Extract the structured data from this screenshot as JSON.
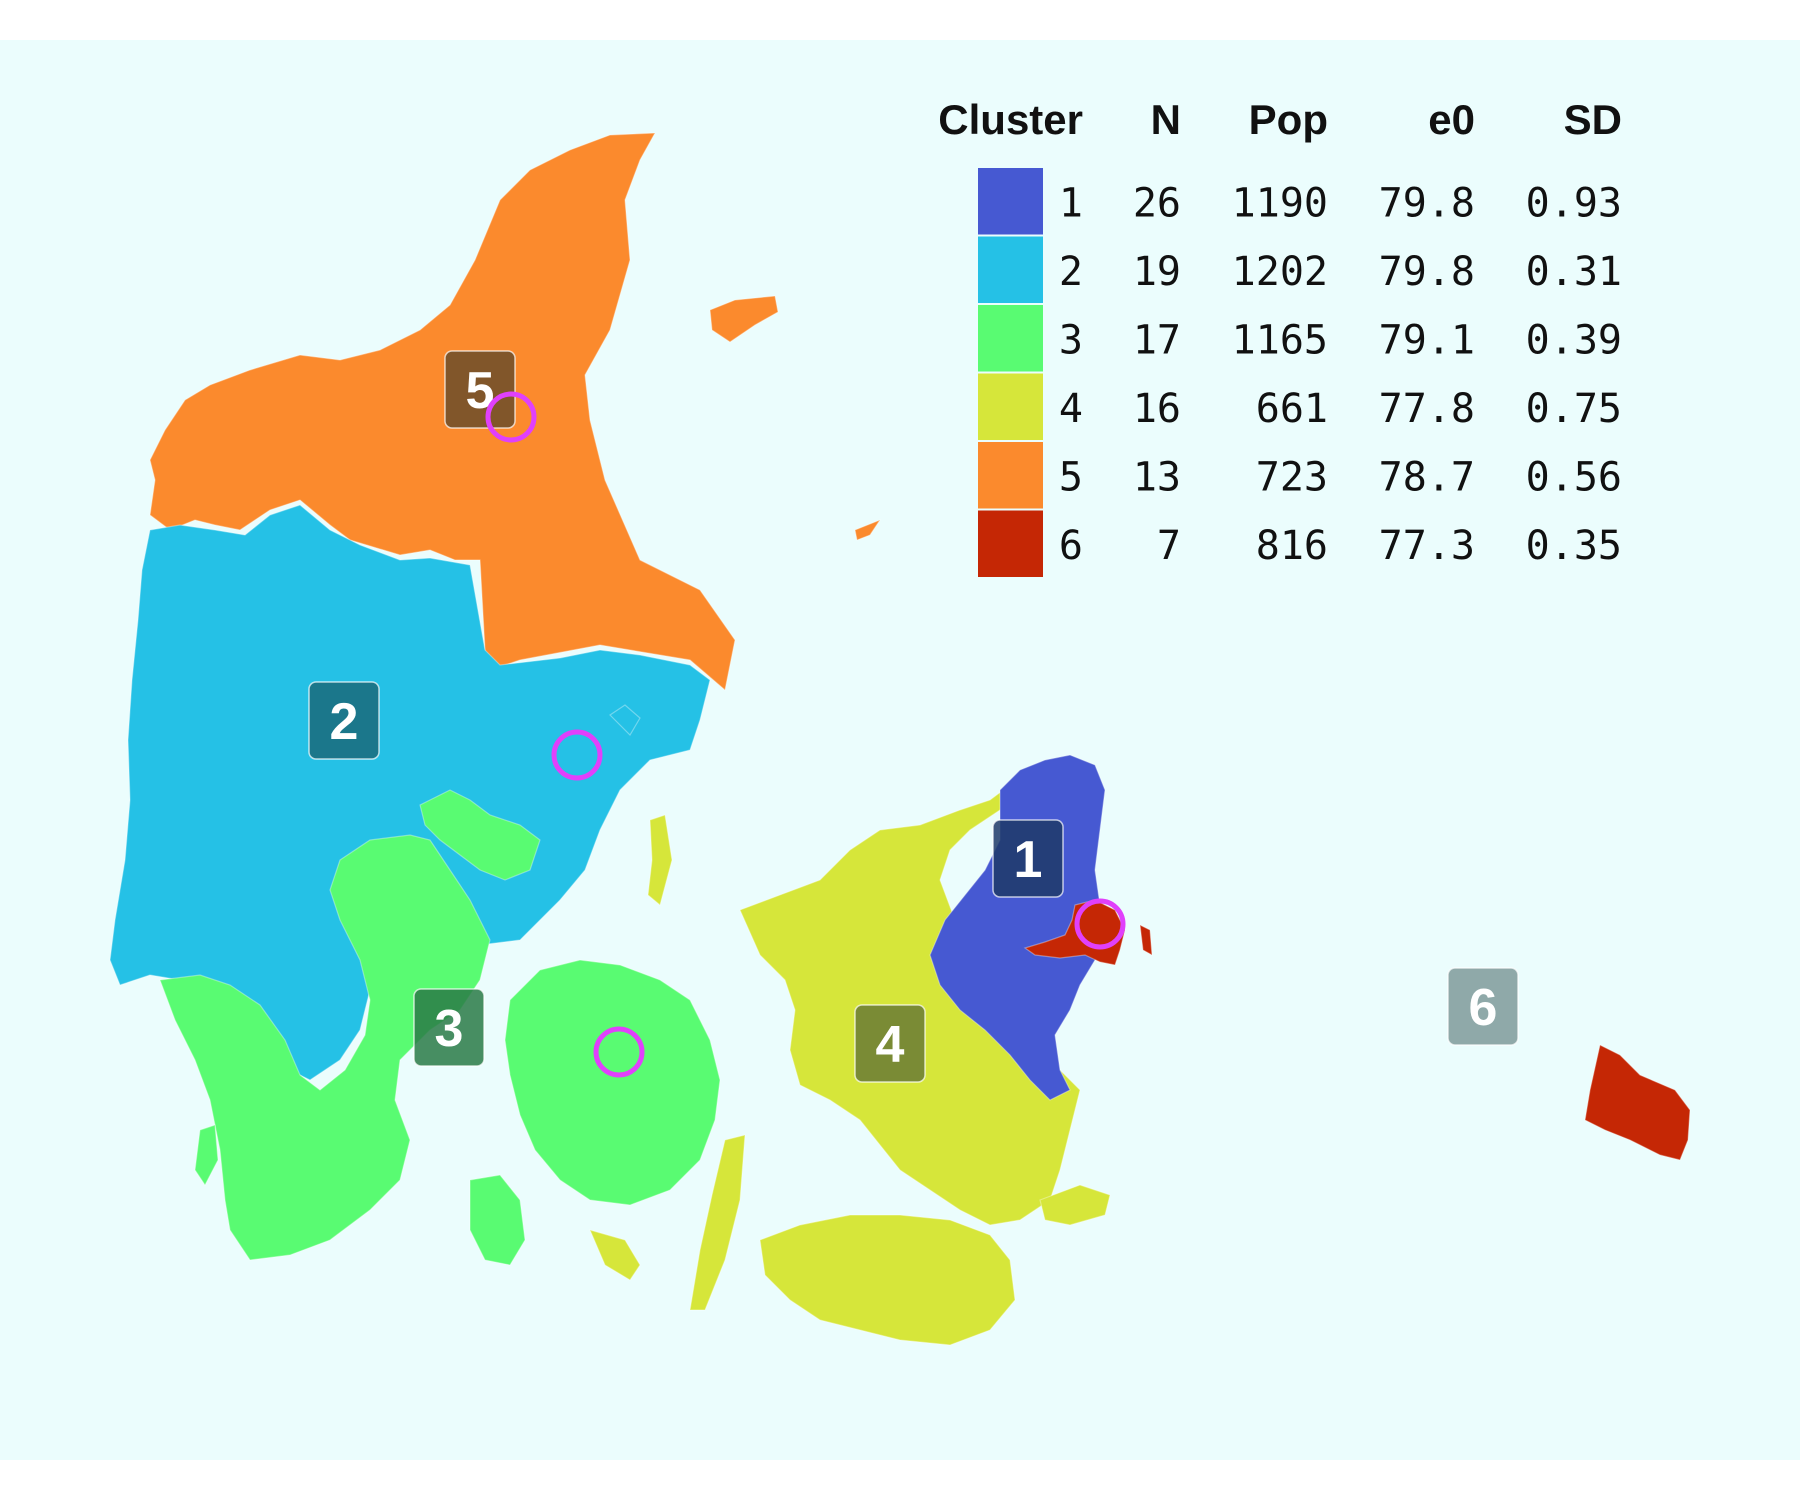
{
  "legend": {
    "headers": {
      "cluster": "Cluster",
      "n": "N",
      "pop": "Pop",
      "e0": "e0",
      "sd": "SD"
    },
    "rows": [
      {
        "cluster": "1",
        "n": "26",
        "pop": "1190",
        "e0": "79.8",
        "sd": "0.93",
        "color": "#4659d2"
      },
      {
        "cluster": "2",
        "n": "19",
        "pop": "1202",
        "e0": "79.8",
        "sd": "0.31",
        "color": "#25c1e6"
      },
      {
        "cluster": "3",
        "n": "17",
        "pop": "1165",
        "e0": "79.1",
        "sd": "0.39",
        "color": "#59fb72"
      },
      {
        "cluster": "4",
        "n": "16",
        "pop": "661",
        "e0": "77.8",
        "sd": "0.75",
        "color": "#d6e63a"
      },
      {
        "cluster": "5",
        "n": "13",
        "pop": "723",
        "e0": "78.7",
        "sd": "0.56",
        "color": "#fb8a2d"
      },
      {
        "cluster": "6",
        "n": "7",
        "pop": "816",
        "e0": "77.3",
        "sd": "0.35",
        "color": "#c52705"
      }
    ]
  },
  "badges": [
    {
      "label": "1",
      "color": "#1f3a68"
    },
    {
      "label": "2",
      "color": "#1a6a7a"
    },
    {
      "label": "3",
      "color": "#2a7a46"
    },
    {
      "label": "4",
      "color": "#6a7a35"
    },
    {
      "label": "5",
      "color": "#6b4c2a"
    },
    {
      "label": "6",
      "color": "#7f9a9a"
    }
  ],
  "colors": {
    "sea": "#ebfdfd",
    "ring": "#e040fb"
  }
}
